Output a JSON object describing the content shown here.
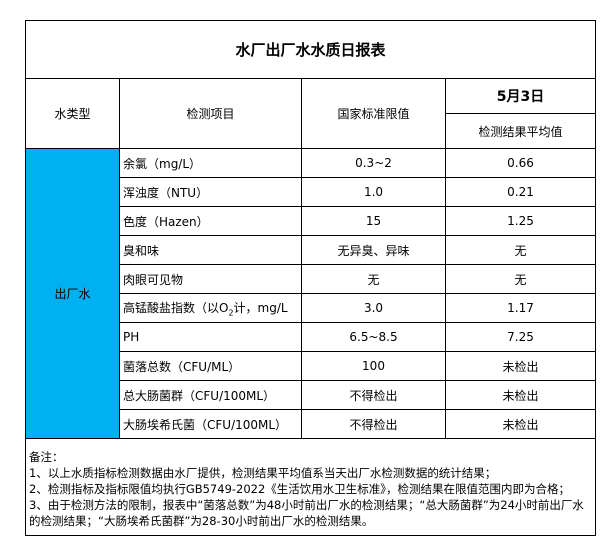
{
  "title": "水厂出厂水水质日报表",
  "header": {
    "water_type": "水类型",
    "item": "检测项目",
    "standard": "国家标准限值",
    "date": "5月3日",
    "result": "检测结果平均值"
  },
  "category": "出厂水",
  "category_color": "#00b0f0",
  "rows": [
    {
      "item": "余氯（mg/L）",
      "standard": "0.3~2",
      "result": "0.66"
    },
    {
      "item": "浑浊度（NTU）",
      "standard": "1.0",
      "result": "0.21"
    },
    {
      "item": "色度（Hazen）",
      "standard": "15",
      "result": "1.25"
    },
    {
      "item": "臭和味",
      "standard": "无异臭、异味",
      "result": "无"
    },
    {
      "item": "肉眼可见物",
      "standard": "无",
      "result": "无"
    },
    {
      "item_prefix": "高锰酸盐指数（以O",
      "item_sub": "2",
      "item_suffix": "计，mg/L",
      "standard": "3.0",
      "result": "1.17"
    },
    {
      "item": "PH",
      "standard": "6.5~8.5",
      "result": "7.25"
    },
    {
      "item": "菌落总数（CFU/ML）",
      "standard": "100",
      "result": "未检出"
    },
    {
      "item": "总大肠菌群（CFU/100ML）",
      "standard": "不得检出",
      "result": "未检出"
    },
    {
      "item": "大肠埃希氏菌（CFU/100ML）",
      "standard": "不得检出",
      "result": "未检出"
    }
  ],
  "notes": [
    "备注：",
    "1、以上水质指标检测数据由水厂提供，检测结果平均值系当天出厂水检测数据的统计结果；",
    "2、检测指标及指标限值均执行GB5749-2022《生活饮用水卫生标准》，检测结果在限值范围内即为合格；",
    "3、由于检测方法的限制，报表中“菌落总数”为48小时前出厂水的检测结果；“总大肠菌群”为24小时前出厂水的检测结果；“大肠埃希氏菌群”为28-30小时前出厂水的检测结果。"
  ]
}
